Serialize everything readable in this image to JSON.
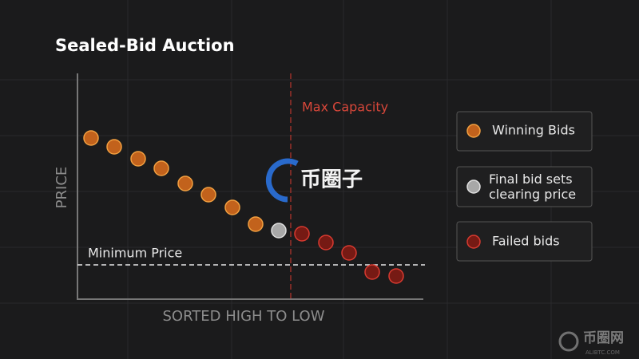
{
  "title": "Sealed-Bid Auction",
  "axes": {
    "y_label": "PRICE",
    "x_label": "SORTED HIGH TO LOW"
  },
  "annotations": {
    "minimum_price": "Minimum Price",
    "max_capacity": "Max Capacity"
  },
  "legend": [
    {
      "label": "Winning Bids"
    },
    {
      "label": "Final bid sets clearing price"
    },
    {
      "label": "Failed bids"
    }
  ],
  "watermarks": {
    "center": "币圈子",
    "corner": "币圈网",
    "corner_sub": "ALIBTC.COM"
  }
}
